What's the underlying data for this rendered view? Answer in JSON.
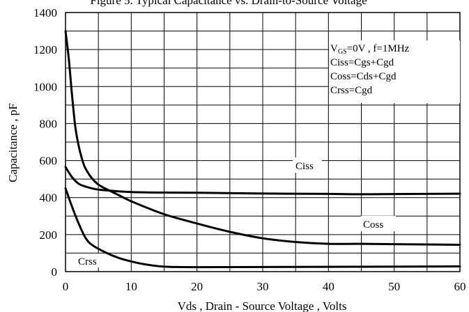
{
  "chart_data": {
    "type": "line",
    "title": "Figure 5. Typical Capacitance vs. Drain-to-Source Voltage",
    "xlabel": "Vds , Drain - Source Voltage , Volts",
    "ylabel": "Capacitance , pF",
    "xlim": [
      0,
      60
    ],
    "ylim": [
      0,
      1400
    ],
    "xticks": [
      "0",
      "10",
      "20",
      "30",
      "40",
      "50",
      "60"
    ],
    "yticks": [
      "0",
      "200",
      "400",
      "600",
      "800",
      "1000",
      "1200",
      "1400"
    ],
    "grid": true,
    "annotation": {
      "lines": [
        "Ciss=Cgs+Cgd",
        "Coss=Cds+Cgd",
        "Crss=Cgd"
      ],
      "condition_prefix": "V",
      "condition_sub": "GS",
      "condition_suffix": "=0V , f=1MHz"
    },
    "series": [
      {
        "name": "Ciss",
        "x": [
          0,
          1,
          2,
          3,
          4,
          5,
          7,
          10,
          15,
          20,
          30,
          40,
          45,
          50,
          60
        ],
        "y": [
          565,
          510,
          475,
          460,
          450,
          443,
          437,
          430,
          427,
          426,
          422,
          420,
          418,
          419,
          421
        ]
      },
      {
        "name": "Coss",
        "x": [
          0,
          0.5,
          1,
          1.5,
          2,
          2.5,
          3,
          4,
          5,
          6,
          8,
          10,
          15,
          20,
          25,
          30,
          35,
          40,
          45,
          50,
          60
        ],
        "y": [
          1300,
          1150,
          950,
          780,
          680,
          610,
          560,
          505,
          470,
          450,
          415,
          380,
          310,
          260,
          215,
          180,
          160,
          150,
          150,
          148,
          145
        ]
      },
      {
        "name": "Crss",
        "x": [
          0,
          1,
          2,
          3,
          4,
          6,
          8,
          10,
          12,
          15,
          20,
          30,
          40,
          50,
          60
        ],
        "y": [
          450,
          350,
          260,
          185,
          145,
          105,
          75,
          55,
          40,
          27,
          24,
          25,
          26,
          27,
          28
        ]
      }
    ]
  }
}
